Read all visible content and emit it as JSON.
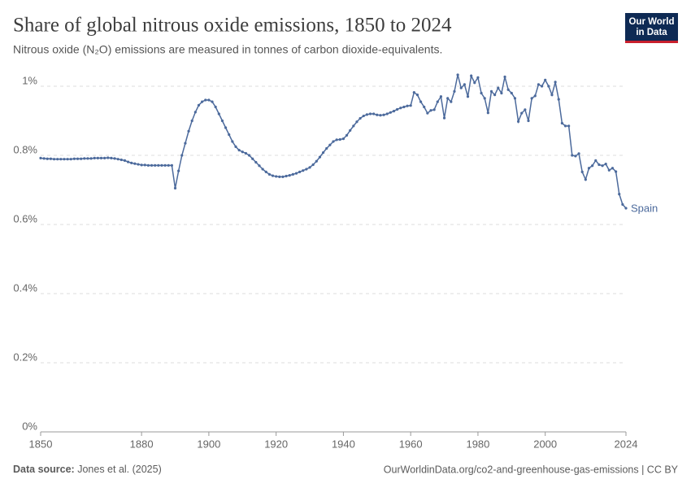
{
  "chart_data": {
    "type": "line",
    "title": "Share of global nitrous oxide emissions, 1850 to 2024",
    "subtitle": "Nitrous oxide (N₂O) emissions are measured in tonnes of carbon dioxide-equivalents.",
    "logo": [
      "Our World",
      "in Data"
    ],
    "source_label": "Data source:",
    "source": "Jones et al. (2025)",
    "credit": "OurWorldinData.org/co2-and-greenhouse-gas-emissions | CC BY",
    "x": [
      1850,
      1851,
      1852,
      1853,
      1854,
      1855,
      1856,
      1857,
      1858,
      1859,
      1860,
      1861,
      1862,
      1863,
      1864,
      1865,
      1866,
      1867,
      1868,
      1869,
      1870,
      1871,
      1872,
      1873,
      1874,
      1875,
      1876,
      1877,
      1878,
      1879,
      1880,
      1881,
      1882,
      1883,
      1884,
      1885,
      1886,
      1887,
      1888,
      1889,
      1890,
      1891,
      1892,
      1893,
      1894,
      1895,
      1896,
      1897,
      1898,
      1899,
      1900,
      1901,
      1902,
      1903,
      1904,
      1905,
      1906,
      1907,
      1908,
      1909,
      1910,
      1911,
      1912,
      1913,
      1914,
      1915,
      1916,
      1917,
      1918,
      1919,
      1920,
      1921,
      1922,
      1923,
      1924,
      1925,
      1926,
      1927,
      1928,
      1929,
      1930,
      1931,
      1932,
      1933,
      1934,
      1935,
      1936,
      1937,
      1938,
      1939,
      1940,
      1941,
      1942,
      1943,
      1944,
      1945,
      1946,
      1947,
      1948,
      1949,
      1950,
      1951,
      1952,
      1953,
      1954,
      1955,
      1956,
      1957,
      1958,
      1959,
      1960,
      1961,
      1962,
      1963,
      1964,
      1965,
      1966,
      1967,
      1968,
      1969,
      1970,
      1971,
      1972,
      1973,
      1974,
      1975,
      1976,
      1977,
      1978,
      1979,
      1980,
      1981,
      1982,
      1983,
      1984,
      1985,
      1986,
      1987,
      1988,
      1989,
      1990,
      1991,
      1992,
      1993,
      1994,
      1995,
      1996,
      1997,
      1998,
      1999,
      2000,
      2001,
      2002,
      2003,
      2004,
      2005,
      2006,
      2007,
      2008,
      2009,
      2010,
      2011,
      2012,
      2013,
      2014,
      2015,
      2016,
      2017,
      2018,
      2019,
      2020,
      2021,
      2022,
      2023,
      2024
    ],
    "series": [
      {
        "name": "Spain",
        "color": "#4c6a9c",
        "values": [
          0.792,
          0.791,
          0.79,
          0.79,
          0.789,
          0.789,
          0.789,
          0.789,
          0.789,
          0.789,
          0.79,
          0.79,
          0.79,
          0.791,
          0.791,
          0.791,
          0.792,
          0.792,
          0.792,
          0.792,
          0.793,
          0.792,
          0.791,
          0.789,
          0.787,
          0.785,
          0.781,
          0.778,
          0.776,
          0.774,
          0.772,
          0.772,
          0.771,
          0.771,
          0.771,
          0.771,
          0.771,
          0.771,
          0.771,
          0.771,
          0.705,
          0.755,
          0.8,
          0.835,
          0.87,
          0.9,
          0.925,
          0.945,
          0.955,
          0.96,
          0.96,
          0.955,
          0.94,
          0.92,
          0.9,
          0.88,
          0.86,
          0.84,
          0.825,
          0.815,
          0.81,
          0.806,
          0.8,
          0.79,
          0.78,
          0.77,
          0.76,
          0.752,
          0.745,
          0.741,
          0.739,
          0.738,
          0.738,
          0.74,
          0.742,
          0.745,
          0.748,
          0.752,
          0.756,
          0.76,
          0.765,
          0.773,
          0.783,
          0.795,
          0.808,
          0.82,
          0.83,
          0.84,
          0.845,
          0.846,
          0.848,
          0.858,
          0.872,
          0.885,
          0.897,
          0.907,
          0.914,
          0.918,
          0.92,
          0.92,
          0.917,
          0.916,
          0.917,
          0.92,
          0.924,
          0.928,
          0.933,
          0.937,
          0.94,
          0.943,
          0.944,
          0.982,
          0.975,
          0.955,
          0.94,
          0.922,
          0.93,
          0.932,
          0.955,
          0.97,
          0.908,
          0.965,
          0.955,
          0.985,
          1.033,
          0.995,
          1.005,
          0.97,
          1.03,
          1.01,
          1.025,
          0.98,
          0.965,
          0.923,
          0.985,
          0.975,
          0.995,
          0.98,
          1.027,
          0.99,
          0.98,
          0.965,
          0.898,
          0.922,
          0.932,
          0.9,
          0.965,
          0.972,
          1.005,
          1.0,
          1.018,
          1.0,
          0.975,
          1.012,
          0.962,
          0.893,
          0.885,
          0.885,
          0.8,
          0.798,
          0.805,
          0.752,
          0.73,
          0.763,
          0.77,
          0.785,
          0.773,
          0.77,
          0.775,
          0.757,
          0.763,
          0.753,
          0.688,
          0.658,
          0.647
        ]
      }
    ],
    "xlim": [
      1850,
      2024
    ],
    "xticks": [
      1850,
      1880,
      1900,
      1920,
      1940,
      1960,
      1980,
      2000,
      2024
    ],
    "ylim": [
      0,
      1.04
    ],
    "yticks": [
      {
        "value": 0,
        "label": "0%"
      },
      {
        "value": 0.2,
        "label": "0.2%"
      },
      {
        "value": 0.4,
        "label": "0.4%"
      },
      {
        "value": 0.6,
        "label": "0.6%"
      },
      {
        "value": 0.8,
        "label": "0.8%"
      },
      {
        "value": 1,
        "label": "1%"
      }
    ],
    "grid": true
  }
}
